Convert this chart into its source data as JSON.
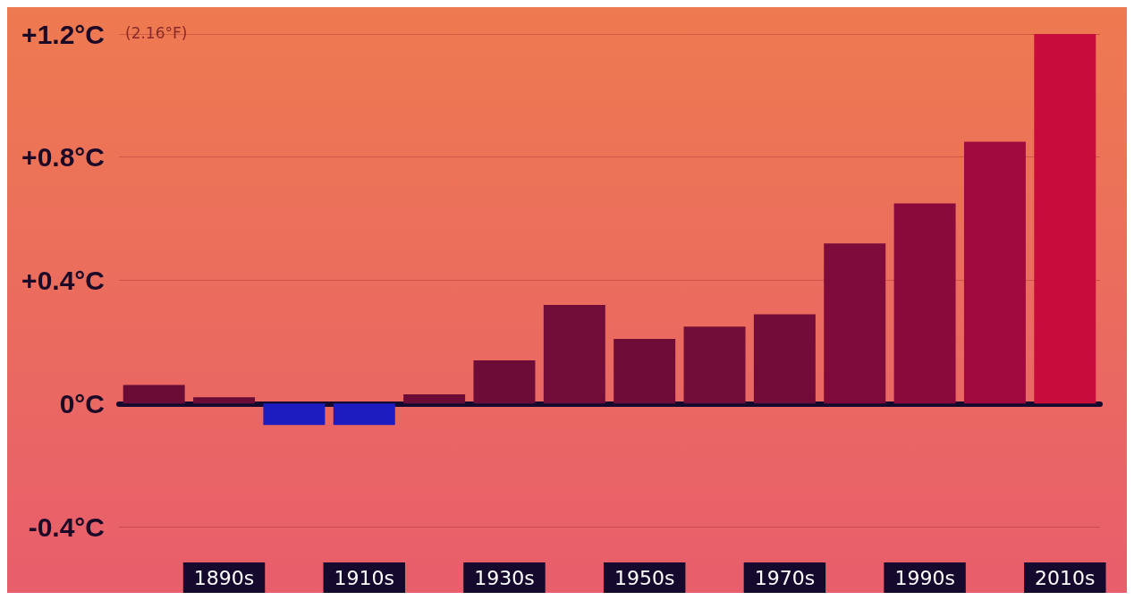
{
  "chart_data": {
    "type": "bar",
    "categories": [
      null,
      "1890s",
      null,
      "1910s",
      null,
      "1930s",
      null,
      "1950s",
      null,
      "1970s",
      null,
      "1990s",
      null,
      "2010s"
    ],
    "values": [
      0.06,
      0.02,
      -0.07,
      -0.07,
      0.03,
      0.14,
      0.32,
      0.21,
      0.25,
      0.29,
      0.52,
      0.65,
      0.85,
      1.2
    ],
    "colors": [
      "#6a0c36",
      "#6a0c36",
      "#1c1cc0",
      "#1c1cc0",
      "#6a0c36",
      "#6e0c38",
      "#720c38",
      "#700c38",
      "#720c38",
      "#740c39",
      "#7e0b3a",
      "#8a0a3c",
      "#a00a3e",
      "#c80c3c"
    ],
    "ylim": [
      -0.4,
      1.2
    ],
    "yticks": [
      {
        "value": -0.4,
        "label": "-0.4°C"
      },
      {
        "value": 0,
        "label": "0°C"
      },
      {
        "value": 0.4,
        "label": "+0.4°C"
      },
      {
        "value": 0.8,
        "label": "+0.8°C"
      },
      {
        "value": 1.2,
        "label": "+1.2°C"
      }
    ],
    "annotations": [
      "(2.16°F)"
    ],
    "grid": "y"
  }
}
